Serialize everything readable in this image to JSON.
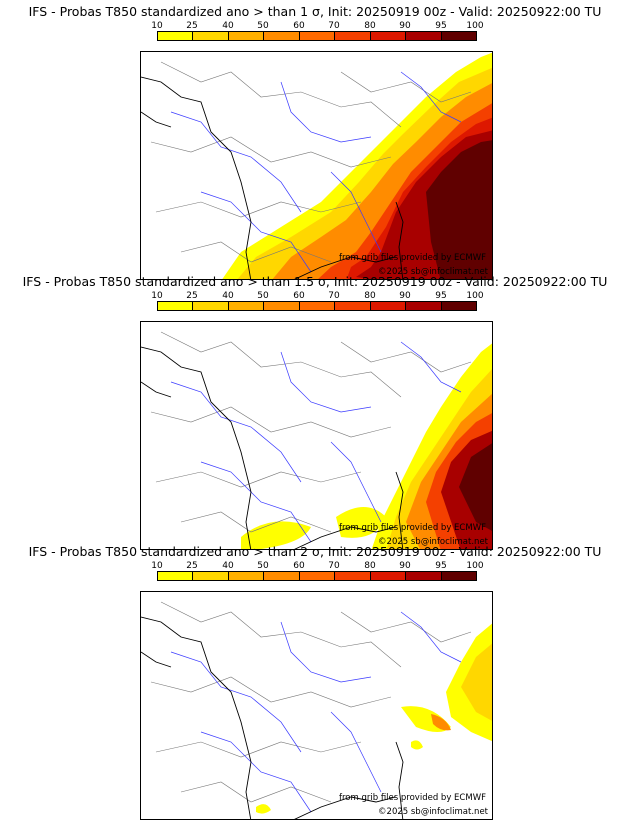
{
  "colors": {
    "c10": "#ffff00",
    "c25": "#ffd700",
    "c40": "#ffb000",
    "c50": "#ff8c00",
    "c60": "#ff6a00",
    "c70": "#f44000",
    "c80": "#dd1800",
    "c90": "#a80000",
    "c95": "#8a0000",
    "c100": "#600000",
    "border": "#777777",
    "river": "#3a3aff",
    "coast": "#000000"
  },
  "legend": {
    "labels": [
      "10",
      "25",
      "40",
      "50",
      "60",
      "70",
      "80",
      "90",
      "95",
      "100"
    ]
  },
  "panels": [
    {
      "title": "IFS - Probas T850  standardized ano > than 1 σ, Init: 20250919 00z - Valid: 20250922:00 TU",
      "credit": "from grib files provided by ECMWF",
      "copyright": "©2025 sb@infoclimat.net"
    },
    {
      "title": "IFS - Probas T850  standardized ano > than 1.5 σ, Init: 20250919 00z - Valid: 20250922:00 TU",
      "credit": "from grib files provided by ECMWF",
      "copyright": "©2025 sb@infoclimat.net"
    },
    {
      "title": "IFS - Probas T850  standardized ano > than 2 σ, Init: 20250919 00z - Valid: 20250922:00 TU",
      "credit": "from grib files provided by ECMWF",
      "copyright": "©2025 sb@infoclimat.net"
    }
  ]
}
